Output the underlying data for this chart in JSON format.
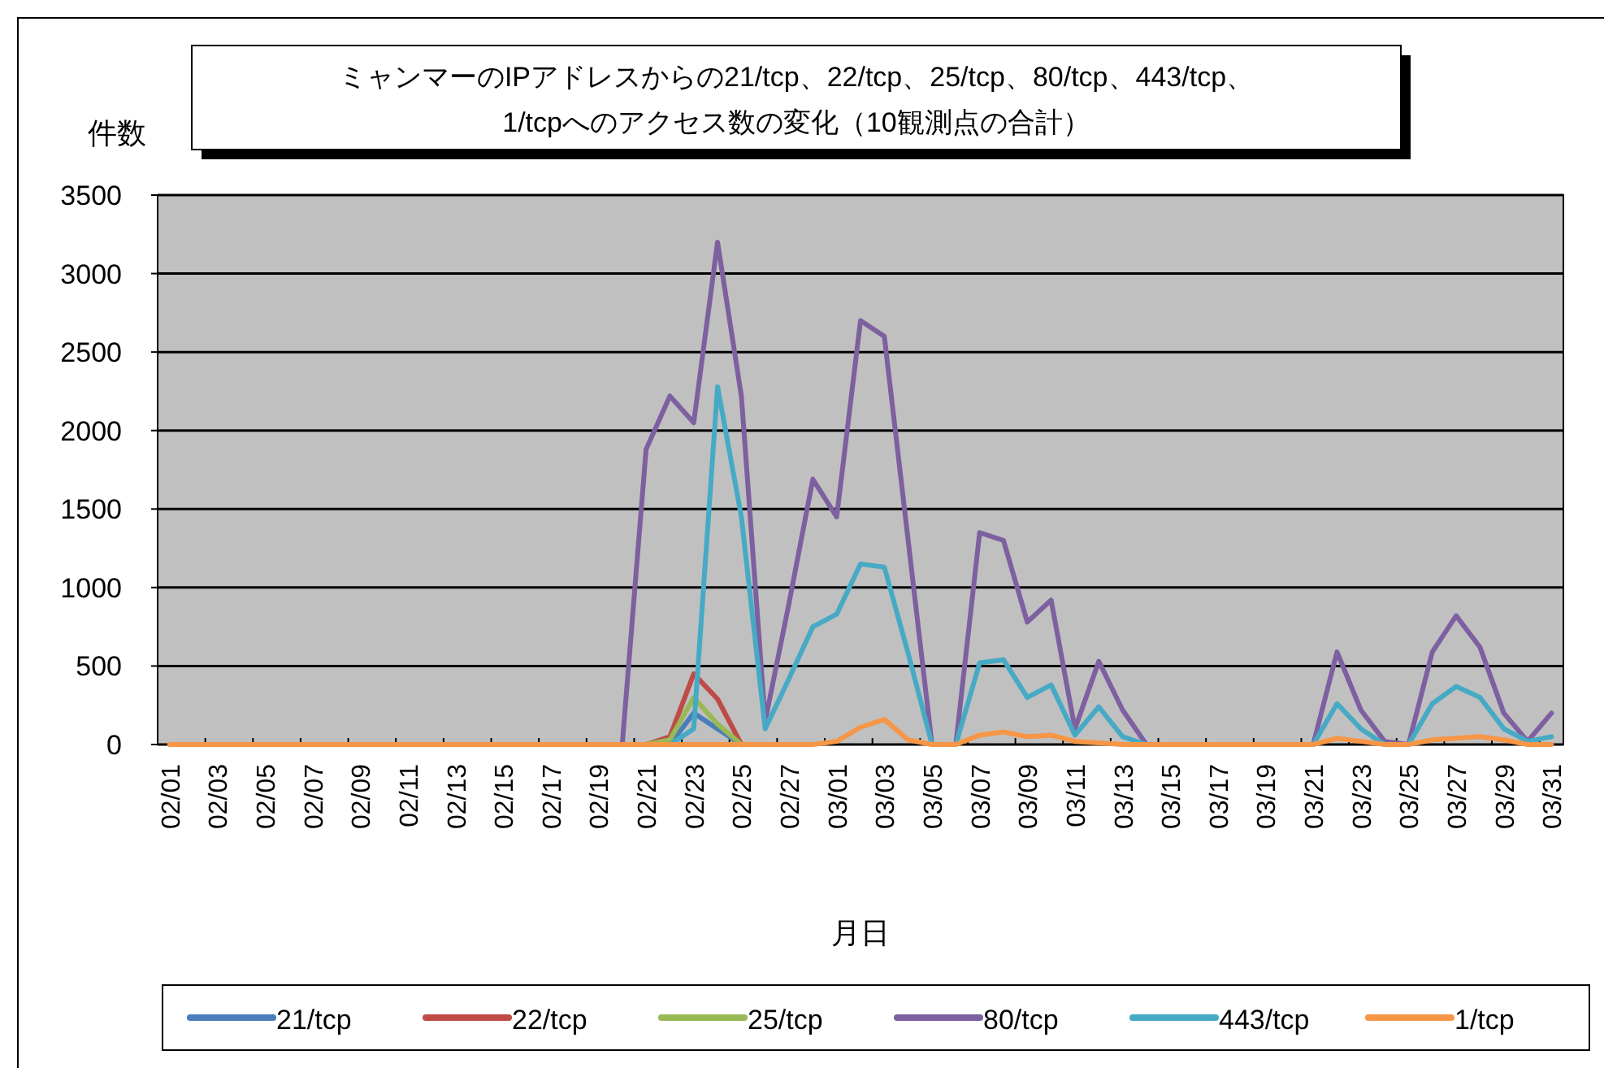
{
  "chart_data": {
    "type": "line",
    "title": "ミャンマーのIPアドレスからの21/tcp、22/tcp、25/tcp、80/tcp、443/tcp、\n1/tcpへのアクセス数の変化（10観測点の合計）",
    "xlabel": "月日",
    "ylabel": "件数",
    "categories": [
      "02/01",
      null,
      "02/03",
      null,
      "02/05",
      null,
      "02/07",
      null,
      "02/09",
      null,
      "02/11",
      null,
      "02/13",
      null,
      "02/15",
      null,
      "02/17",
      null,
      "02/19",
      null,
      "02/21",
      null,
      "02/23",
      null,
      "02/25",
      null,
      "02/27",
      null,
      "03/01",
      null,
      "03/03",
      null,
      "03/05",
      null,
      "03/07",
      null,
      "03/09",
      null,
      "03/11",
      null,
      "03/13",
      null,
      "03/15",
      null,
      "03/17",
      null,
      "03/19",
      null,
      "03/21",
      null,
      "03/23",
      null,
      "03/25",
      null,
      "03/27",
      null,
      "03/29",
      null,
      "03/31"
    ],
    "series": [
      {
        "name": "21/tcp",
        "color": "#4a7ebb",
        "values": [
          null,
          null,
          null,
          null,
          null,
          null,
          null,
          null,
          null,
          null,
          null,
          null,
          null,
          null,
          null,
          null,
          null,
          null,
          null,
          null,
          null,
          0,
          200,
          100,
          0,
          null,
          null,
          null,
          null,
          null,
          null,
          null,
          null,
          null,
          null,
          null,
          null,
          null,
          null,
          null,
          null,
          null,
          null,
          null,
          null,
          null,
          null,
          null,
          null,
          null,
          null,
          null,
          null,
          null,
          null,
          null,
          null,
          null,
          null
        ]
      },
      {
        "name": "22/tcp",
        "color": "#be4b48",
        "values": [
          null,
          null,
          null,
          null,
          null,
          null,
          null,
          null,
          null,
          null,
          null,
          null,
          null,
          null,
          null,
          null,
          null,
          null,
          null,
          null,
          0,
          50,
          450,
          290,
          0,
          null,
          null,
          null,
          null,
          null,
          null,
          null,
          null,
          null,
          null,
          null,
          null,
          null,
          null,
          null,
          null,
          null,
          null,
          null,
          null,
          null,
          null,
          null,
          null,
          null,
          null,
          null,
          null,
          null,
          null,
          null,
          null,
          null,
          null
        ]
      },
      {
        "name": "25/tcp",
        "color": "#98b954",
        "values": [
          null,
          null,
          null,
          null,
          null,
          null,
          null,
          null,
          null,
          null,
          null,
          null,
          null,
          null,
          null,
          null,
          null,
          null,
          null,
          null,
          0,
          30,
          300,
          130,
          0,
          null,
          null,
          null,
          null,
          null,
          null,
          null,
          null,
          null,
          null,
          null,
          null,
          null,
          null,
          null,
          null,
          null,
          null,
          null,
          null,
          null,
          null,
          null,
          null,
          null,
          null,
          null,
          null,
          null,
          null,
          null,
          null,
          null,
          null
        ]
      },
      {
        "name": "80/tcp",
        "color": "#7d60a0",
        "values": [
          null,
          null,
          null,
          null,
          null,
          null,
          null,
          null,
          null,
          null,
          null,
          null,
          null,
          null,
          null,
          null,
          null,
          null,
          null,
          0,
          1880,
          2220,
          2050,
          3200,
          2220,
          150,
          900,
          1690,
          1450,
          2700,
          2600,
          1300,
          0,
          0,
          1350,
          1300,
          780,
          920,
          100,
          530,
          220,
          0,
          null,
          null,
          null,
          null,
          null,
          null,
          0,
          590,
          220,
          20,
          0,
          590,
          820,
          620,
          200,
          20,
          200
        ]
      },
      {
        "name": "443/tcp",
        "color": "#46aac5",
        "values": [
          null,
          null,
          null,
          null,
          null,
          null,
          null,
          null,
          null,
          null,
          null,
          null,
          null,
          null,
          null,
          null,
          null,
          null,
          null,
          null,
          null,
          0,
          100,
          2280,
          1450,
          100,
          420,
          750,
          830,
          1150,
          1130,
          580,
          0,
          0,
          520,
          540,
          300,
          380,
          60,
          240,
          50,
          0,
          null,
          null,
          null,
          null,
          null,
          null,
          0,
          260,
          100,
          0,
          0,
          260,
          370,
          300,
          100,
          20,
          50
        ]
      },
      {
        "name": "1/tcp",
        "color": "#f79646",
        "values": [
          0,
          0,
          0,
          0,
          0,
          0,
          0,
          0,
          0,
          0,
          0,
          0,
          0,
          0,
          0,
          0,
          0,
          0,
          0,
          0,
          0,
          0,
          0,
          0,
          0,
          0,
          0,
          0,
          20,
          110,
          160,
          30,
          0,
          0,
          60,
          80,
          50,
          60,
          20,
          10,
          0,
          0,
          0,
          0,
          0,
          0,
          0,
          0,
          0,
          40,
          20,
          0,
          0,
          30,
          40,
          50,
          30,
          0,
          0
        ]
      }
    ],
    "ylim": [
      0,
      3500
    ],
    "yticks": [
      0,
      500,
      1000,
      1500,
      2000,
      2500,
      3000,
      3500
    ],
    "grid": "y",
    "legend": "bottom",
    "marker": "none",
    "line_style": "solid"
  }
}
